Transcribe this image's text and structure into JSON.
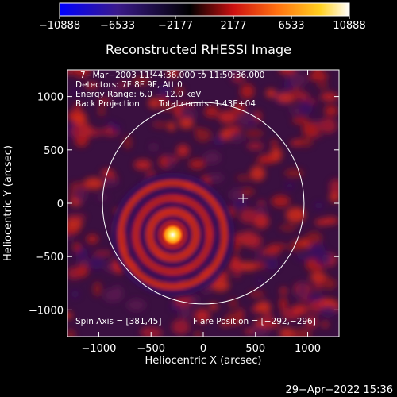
{
  "chart_data": {
    "type": "heatmap",
    "title": "Reconstructed RHESSI Image",
    "xlabel": "Heliocentric X (arcsec)",
    "ylabel": "Heliocentric Y (arcsec)",
    "xlim": [
      -1300,
      1300
    ],
    "ylim": [
      -1250,
      1250
    ],
    "xticks": [
      -1000,
      -500,
      0,
      500,
      1000
    ],
    "xtick_labels": [
      "−1000",
      "−500",
      "0",
      "500",
      "1000"
    ],
    "yticks": [
      -1000,
      -500,
      0,
      500,
      1000
    ],
    "ytick_labels": [
      "−1000",
      "−500",
      "0",
      "500",
      "1000"
    ],
    "colorbar": {
      "range": [
        -10888,
        10888
      ],
      "ticks": [
        -10888,
        -6533,
        -2177,
        2177,
        6533,
        10888
      ],
      "tick_labels": [
        "−10888",
        "−6533",
        "−2177",
        "2177",
        "6533",
        "10888"
      ],
      "colors": [
        "#0000ff",
        "#3a1a8a",
        "#000000",
        "#cc1010",
        "#ff7010",
        "#ffd020",
        "#ffffff"
      ]
    },
    "info_lines": [
      "7−Mar−2003 11:44:36.000 to 11:50:36.000",
      "Detectors: 7F 8F 9F, Att 0",
      "Energy Range: 6.0 − 12.0 keV",
      "Back Projection",
      "Total counts: 1.43E+04"
    ],
    "spin_axis": "Spin Axis = [381,45]",
    "flare_position_label": "Flare Position = [−292,−296]",
    "flare_position": [
      -292,
      -296
    ],
    "solar_limb_radius": 965,
    "spin_axis_marker": [
      381,
      45
    ],
    "ring_radii": [
      110,
      230,
      360,
      500
    ]
  },
  "timestamp": "29−Apr−2022 15:36"
}
